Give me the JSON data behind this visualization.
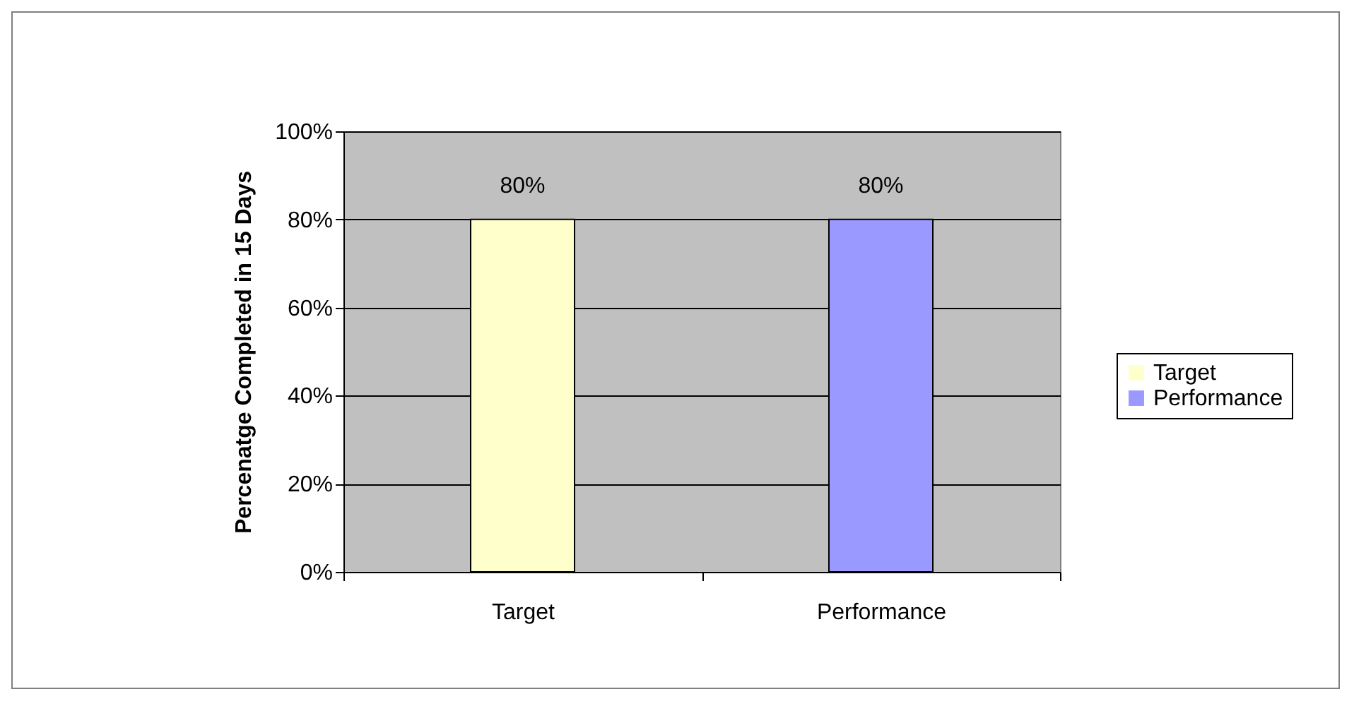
{
  "chart_data": {
    "type": "bar",
    "ylabel": "Percenatge Completed in 15 Days",
    "categories": [
      "Target",
      "Performance"
    ],
    "series": [
      {
        "name": "Target",
        "color": "#ffffcc",
        "values": [
          80,
          null
        ],
        "value_labels": [
          "80%",
          null
        ]
      },
      {
        "name": "Performance",
        "color": "#9999ff",
        "values": [
          null,
          80
        ],
        "value_labels": [
          null,
          "80%"
        ]
      }
    ],
    "ylim": [
      0,
      100
    ],
    "yticks": [
      {
        "value": 0,
        "label": "0%"
      },
      {
        "value": 20,
        "label": "20%"
      },
      {
        "value": 40,
        "label": "40%"
      },
      {
        "value": 60,
        "label": "60%"
      },
      {
        "value": 80,
        "label": "80%"
      },
      {
        "value": 100,
        "label": "100%"
      }
    ],
    "grid": "y",
    "legend": "right"
  }
}
